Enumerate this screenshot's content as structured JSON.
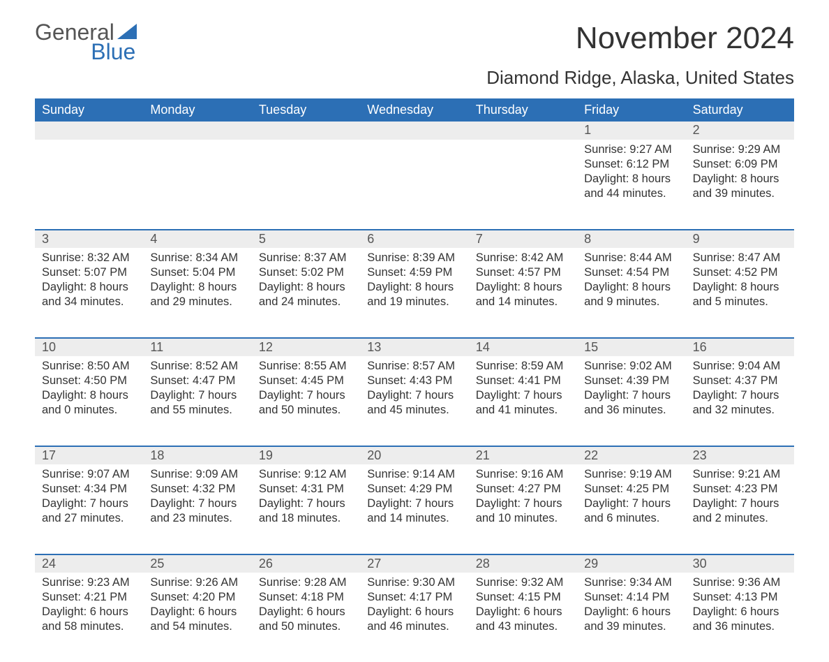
{
  "brand": {
    "name_part1": "General",
    "name_part2": "Blue",
    "logo_color": "#2c6fb5",
    "text_color": "#555555"
  },
  "title": "November 2024",
  "location": "Diamond Ridge, Alaska, United States",
  "colors": {
    "header_bg": "#2c6fb5",
    "header_text": "#ffffff",
    "daylabel_bg": "#ededed",
    "daylabel_text": "#555555",
    "body_text": "#333333",
    "separator": "#2c6fb5",
    "background": "#ffffff"
  },
  "typography": {
    "title_fontsize": 44,
    "location_fontsize": 26,
    "dow_fontsize": 18,
    "daynum_fontsize": 18,
    "body_fontsize": 16.5,
    "logo_fontsize": 32
  },
  "days_of_week": [
    "Sunday",
    "Monday",
    "Tuesday",
    "Wednesday",
    "Thursday",
    "Friday",
    "Saturday"
  ],
  "weeks": [
    [
      null,
      null,
      null,
      null,
      null,
      {
        "n": "1",
        "sunrise": "Sunrise: 9:27 AM",
        "sunset": "Sunset: 6:12 PM",
        "day1": "Daylight: 8 hours",
        "day2": "and 44 minutes."
      },
      {
        "n": "2",
        "sunrise": "Sunrise: 9:29 AM",
        "sunset": "Sunset: 6:09 PM",
        "day1": "Daylight: 8 hours",
        "day2": "and 39 minutes."
      }
    ],
    [
      {
        "n": "3",
        "sunrise": "Sunrise: 8:32 AM",
        "sunset": "Sunset: 5:07 PM",
        "day1": "Daylight: 8 hours",
        "day2": "and 34 minutes."
      },
      {
        "n": "4",
        "sunrise": "Sunrise: 8:34 AM",
        "sunset": "Sunset: 5:04 PM",
        "day1": "Daylight: 8 hours",
        "day2": "and 29 minutes."
      },
      {
        "n": "5",
        "sunrise": "Sunrise: 8:37 AM",
        "sunset": "Sunset: 5:02 PM",
        "day1": "Daylight: 8 hours",
        "day2": "and 24 minutes."
      },
      {
        "n": "6",
        "sunrise": "Sunrise: 8:39 AM",
        "sunset": "Sunset: 4:59 PM",
        "day1": "Daylight: 8 hours",
        "day2": "and 19 minutes."
      },
      {
        "n": "7",
        "sunrise": "Sunrise: 8:42 AM",
        "sunset": "Sunset: 4:57 PM",
        "day1": "Daylight: 8 hours",
        "day2": "and 14 minutes."
      },
      {
        "n": "8",
        "sunrise": "Sunrise: 8:44 AM",
        "sunset": "Sunset: 4:54 PM",
        "day1": "Daylight: 8 hours",
        "day2": "and 9 minutes."
      },
      {
        "n": "9",
        "sunrise": "Sunrise: 8:47 AM",
        "sunset": "Sunset: 4:52 PM",
        "day1": "Daylight: 8 hours",
        "day2": "and 5 minutes."
      }
    ],
    [
      {
        "n": "10",
        "sunrise": "Sunrise: 8:50 AM",
        "sunset": "Sunset: 4:50 PM",
        "day1": "Daylight: 8 hours",
        "day2": "and 0 minutes."
      },
      {
        "n": "11",
        "sunrise": "Sunrise: 8:52 AM",
        "sunset": "Sunset: 4:47 PM",
        "day1": "Daylight: 7 hours",
        "day2": "and 55 minutes."
      },
      {
        "n": "12",
        "sunrise": "Sunrise: 8:55 AM",
        "sunset": "Sunset: 4:45 PM",
        "day1": "Daylight: 7 hours",
        "day2": "and 50 minutes."
      },
      {
        "n": "13",
        "sunrise": "Sunrise: 8:57 AM",
        "sunset": "Sunset: 4:43 PM",
        "day1": "Daylight: 7 hours",
        "day2": "and 45 minutes."
      },
      {
        "n": "14",
        "sunrise": "Sunrise: 8:59 AM",
        "sunset": "Sunset: 4:41 PM",
        "day1": "Daylight: 7 hours",
        "day2": "and 41 minutes."
      },
      {
        "n": "15",
        "sunrise": "Sunrise: 9:02 AM",
        "sunset": "Sunset: 4:39 PM",
        "day1": "Daylight: 7 hours",
        "day2": "and 36 minutes."
      },
      {
        "n": "16",
        "sunrise": "Sunrise: 9:04 AM",
        "sunset": "Sunset: 4:37 PM",
        "day1": "Daylight: 7 hours",
        "day2": "and 32 minutes."
      }
    ],
    [
      {
        "n": "17",
        "sunrise": "Sunrise: 9:07 AM",
        "sunset": "Sunset: 4:34 PM",
        "day1": "Daylight: 7 hours",
        "day2": "and 27 minutes."
      },
      {
        "n": "18",
        "sunrise": "Sunrise: 9:09 AM",
        "sunset": "Sunset: 4:32 PM",
        "day1": "Daylight: 7 hours",
        "day2": "and 23 minutes."
      },
      {
        "n": "19",
        "sunrise": "Sunrise: 9:12 AM",
        "sunset": "Sunset: 4:31 PM",
        "day1": "Daylight: 7 hours",
        "day2": "and 18 minutes."
      },
      {
        "n": "20",
        "sunrise": "Sunrise: 9:14 AM",
        "sunset": "Sunset: 4:29 PM",
        "day1": "Daylight: 7 hours",
        "day2": "and 14 minutes."
      },
      {
        "n": "21",
        "sunrise": "Sunrise: 9:16 AM",
        "sunset": "Sunset: 4:27 PM",
        "day1": "Daylight: 7 hours",
        "day2": "and 10 minutes."
      },
      {
        "n": "22",
        "sunrise": "Sunrise: 9:19 AM",
        "sunset": "Sunset: 4:25 PM",
        "day1": "Daylight: 7 hours",
        "day2": "and 6 minutes."
      },
      {
        "n": "23",
        "sunrise": "Sunrise: 9:21 AM",
        "sunset": "Sunset: 4:23 PM",
        "day1": "Daylight: 7 hours",
        "day2": "and 2 minutes."
      }
    ],
    [
      {
        "n": "24",
        "sunrise": "Sunrise: 9:23 AM",
        "sunset": "Sunset: 4:21 PM",
        "day1": "Daylight: 6 hours",
        "day2": "and 58 minutes."
      },
      {
        "n": "25",
        "sunrise": "Sunrise: 9:26 AM",
        "sunset": "Sunset: 4:20 PM",
        "day1": "Daylight: 6 hours",
        "day2": "and 54 minutes."
      },
      {
        "n": "26",
        "sunrise": "Sunrise: 9:28 AM",
        "sunset": "Sunset: 4:18 PM",
        "day1": "Daylight: 6 hours",
        "day2": "and 50 minutes."
      },
      {
        "n": "27",
        "sunrise": "Sunrise: 9:30 AM",
        "sunset": "Sunset: 4:17 PM",
        "day1": "Daylight: 6 hours",
        "day2": "and 46 minutes."
      },
      {
        "n": "28",
        "sunrise": "Sunrise: 9:32 AM",
        "sunset": "Sunset: 4:15 PM",
        "day1": "Daylight: 6 hours",
        "day2": "and 43 minutes."
      },
      {
        "n": "29",
        "sunrise": "Sunrise: 9:34 AM",
        "sunset": "Sunset: 4:14 PM",
        "day1": "Daylight: 6 hours",
        "day2": "and 39 minutes."
      },
      {
        "n": "30",
        "sunrise": "Sunrise: 9:36 AM",
        "sunset": "Sunset: 4:13 PM",
        "day1": "Daylight: 6 hours",
        "day2": "and 36 minutes."
      }
    ]
  ]
}
